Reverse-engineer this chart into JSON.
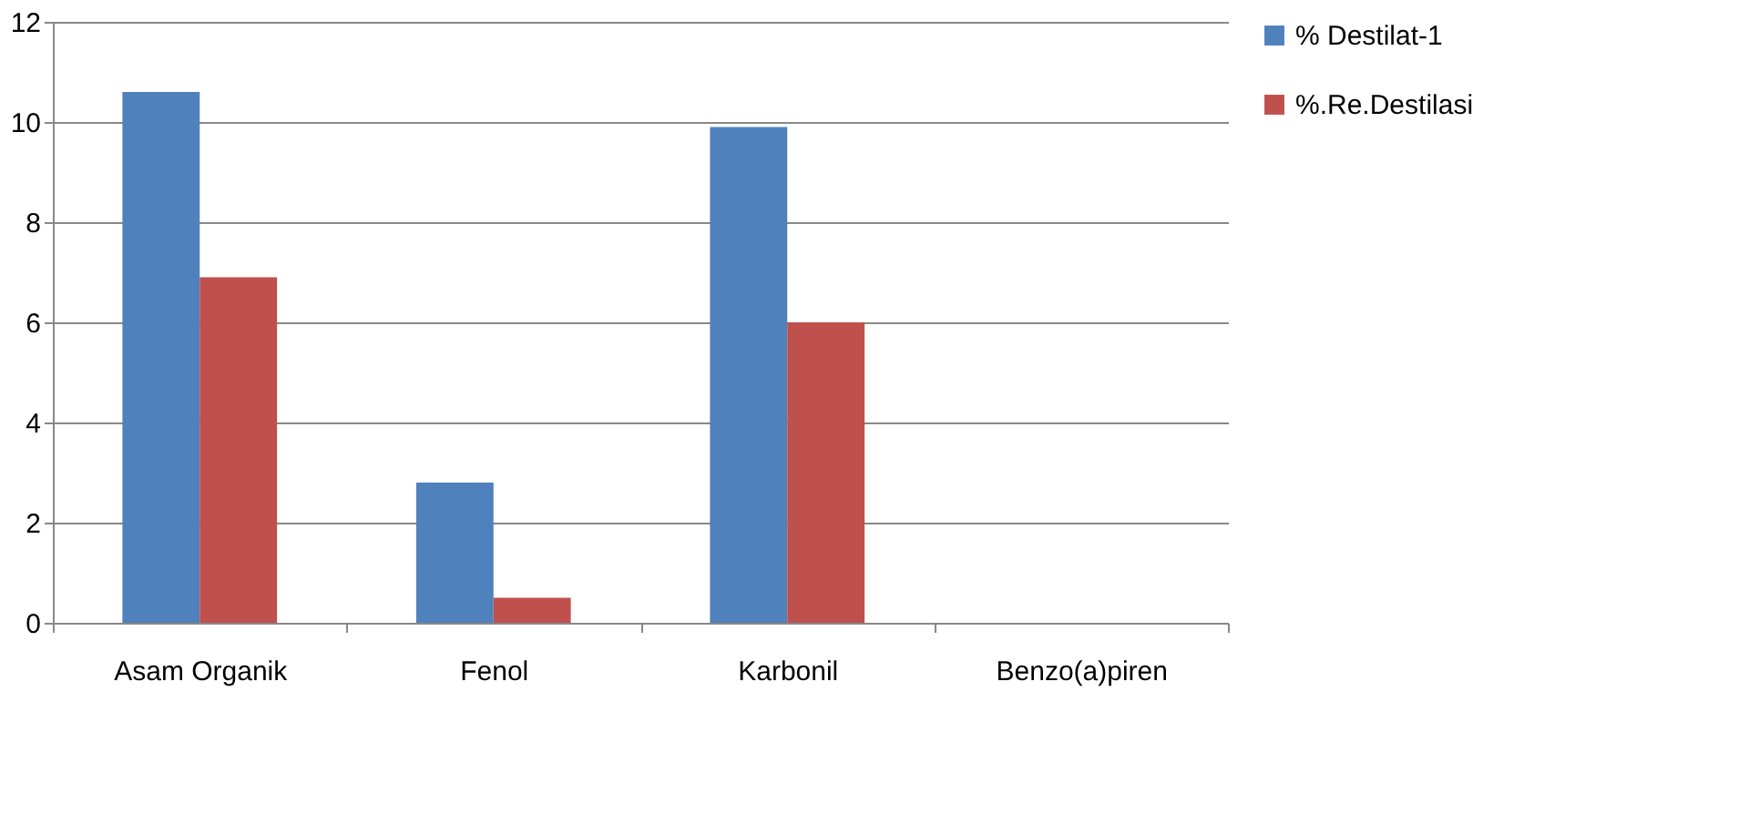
{
  "chart_data": {
    "type": "bar",
    "categories": [
      "Asam Organik",
      "Fenol",
      "Karbonil",
      "Benzo(a)piren"
    ],
    "series": [
      {
        "name": "% Destilat-1",
        "color": "#4f81bd",
        "values": [
          10.6,
          2.8,
          9.9,
          0
        ]
      },
      {
        "name": "%.Re.Destilasi",
        "color": "#c0504d",
        "values": [
          6.9,
          0.5,
          6.0,
          0
        ]
      }
    ],
    "ylim": [
      0,
      12
    ],
    "yticks": [
      0,
      2,
      4,
      6,
      8,
      10,
      12
    ],
    "grid": "y",
    "legend": "right"
  }
}
